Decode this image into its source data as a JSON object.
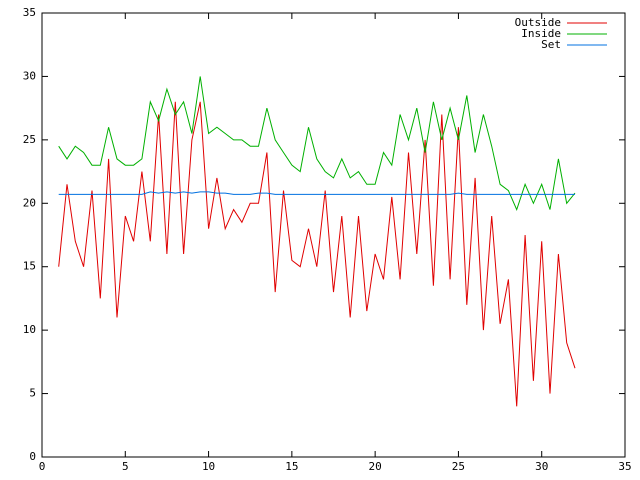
{
  "chart_data": {
    "type": "line",
    "x": [
      1,
      1.5,
      2,
      2.5,
      3,
      3.5,
      4,
      4.5,
      5,
      5.5,
      6,
      6.5,
      7,
      7.5,
      8,
      8.5,
      9,
      9.5,
      10,
      10.5,
      11,
      11.5,
      12,
      12.5,
      13,
      13.5,
      14,
      14.5,
      15,
      15.5,
      16,
      16.5,
      17,
      17.5,
      18,
      18.5,
      19,
      19.5,
      20,
      20.5,
      21,
      21.5,
      22,
      22.5,
      23,
      23.5,
      24,
      24.5,
      25,
      25.5,
      26,
      26.5,
      27,
      27.5,
      28,
      28.5,
      29,
      29.5,
      30,
      30.5,
      31,
      31.5,
      32
    ],
    "series": [
      {
        "name": "Outside",
        "color": "#e00000",
        "values": [
          15,
          21.5,
          17,
          15,
          21,
          12.5,
          23.5,
          11,
          19,
          17,
          22.5,
          17,
          27,
          16,
          28,
          16,
          25,
          28,
          18,
          22,
          18,
          19.5,
          18.5,
          20,
          20,
          24,
          13,
          21,
          15.5,
          15,
          18,
          15,
          21,
          13,
          19,
          11,
          19,
          11.5,
          16,
          14,
          20.5,
          14,
          24,
          16,
          25,
          13.5,
          27,
          14,
          26,
          12,
          22,
          10,
          19,
          10.5,
          14,
          4,
          17.5,
          6,
          17,
          5,
          16,
          9,
          7
        ]
      },
      {
        "name": "Inside",
        "color": "#00b000",
        "values": [
          24.5,
          23.5,
          24.5,
          24,
          23,
          23,
          26,
          23.5,
          23,
          23,
          23.5,
          28,
          26.5,
          29,
          27,
          28,
          25.5,
          30,
          25.5,
          26,
          25.5,
          25,
          25,
          24.5,
          24.5,
          27.5,
          25,
          24,
          23,
          22.5,
          26,
          23.5,
          22.5,
          22,
          23.5,
          22,
          22.5,
          21.5,
          21.5,
          24,
          23,
          27,
          25,
          27.5,
          24,
          28,
          25,
          27.5,
          25,
          28.5,
          24,
          27,
          24.5,
          21.5,
          21,
          19.5,
          21.5,
          20,
          21.5,
          19.5,
          23.5,
          20,
          20.8
        ]
      },
      {
        "name": "Set",
        "color": "#0070e0",
        "values": [
          20.7,
          20.7,
          20.7,
          20.7,
          20.7,
          20.7,
          20.7,
          20.7,
          20.7,
          20.7,
          20.7,
          20.9,
          20.8,
          20.9,
          20.8,
          20.9,
          20.8,
          20.9,
          20.9,
          20.8,
          20.8,
          20.7,
          20.7,
          20.7,
          20.8,
          20.8,
          20.7,
          20.7,
          20.7,
          20.7,
          20.7,
          20.7,
          20.7,
          20.7,
          20.7,
          20.7,
          20.7,
          20.7,
          20.7,
          20.7,
          20.7,
          20.7,
          20.7,
          20.7,
          20.7,
          20.7,
          20.7,
          20.7,
          20.8,
          20.7,
          20.7,
          20.7,
          20.7,
          20.7,
          20.7,
          20.7,
          20.7,
          20.7,
          20.7,
          20.7,
          20.7,
          20.7,
          20.7
        ]
      }
    ],
    "xlim": [
      0,
      35
    ],
    "ylim": [
      0,
      35
    ],
    "xticks": [
      0,
      5,
      10,
      15,
      20,
      25,
      30,
      35
    ],
    "yticks": [
      0,
      5,
      10,
      15,
      20,
      25,
      30,
      35
    ],
    "legend": "top-right"
  }
}
